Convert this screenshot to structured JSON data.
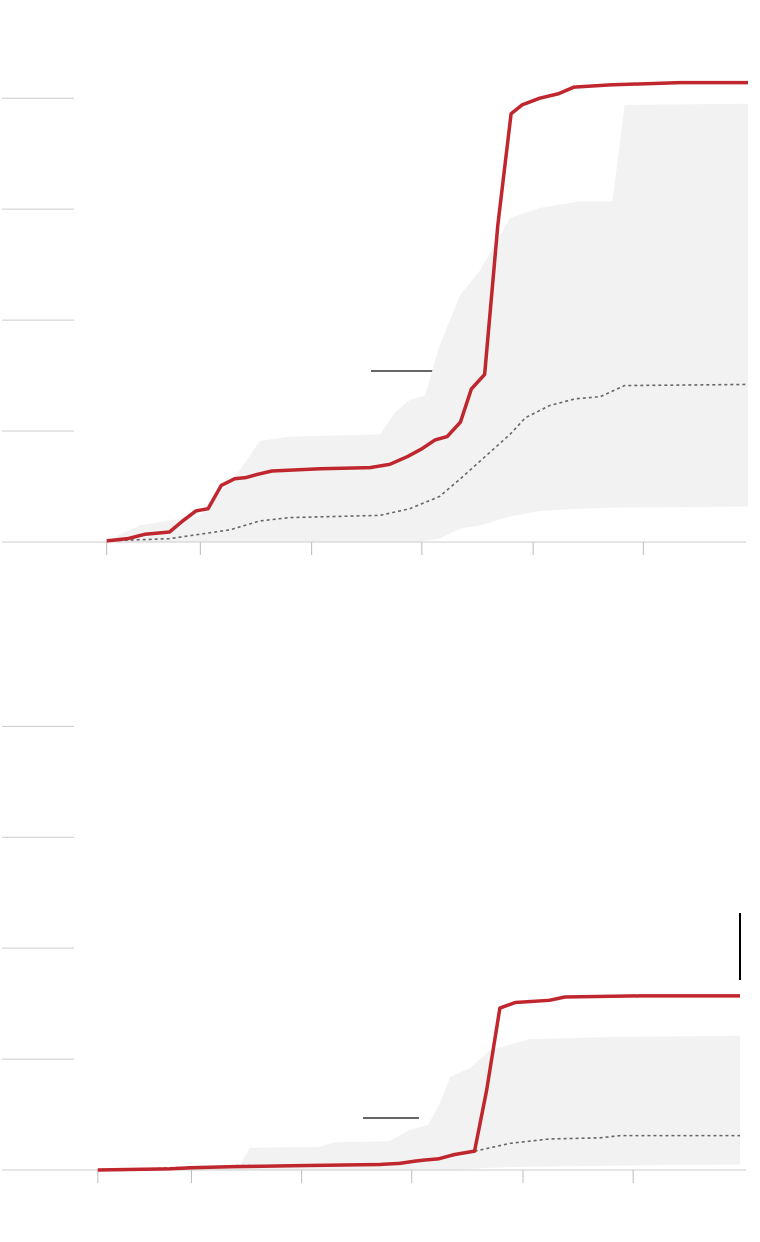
{
  "chart_data": [
    {
      "type": "line",
      "xlim": [
        0,
        6.77
      ],
      "ylim": [
        0,
        4.2
      ],
      "yticks": [
        1,
        2,
        3,
        4
      ],
      "xticks": [
        0.95,
        1.8,
        2.81,
        3.81,
        4.82,
        5.82
      ],
      "grid": true,
      "band": {
        "color": "#f2f2f2",
        "x": [
          0.95,
          1.25,
          1.8,
          2.16,
          2.34,
          2.61,
          3.43,
          3.57,
          3.7,
          3.84,
          3.97,
          4.16,
          4.34,
          4.61,
          4.88,
          5.24,
          5.54,
          5.65,
          6.77
        ],
        "lower": [
          0,
          0,
          0,
          0,
          0,
          0,
          0,
          0,
          0,
          0.01,
          0.03,
          0.12,
          0.15,
          0.23,
          0.28,
          0.3,
          0.31,
          0.31,
          0.32
        ],
        "upper": [
          0.01,
          0.15,
          0.24,
          0.65,
          0.91,
          0.95,
          0.97,
          1.17,
          1.28,
          1.32,
          1.77,
          2.23,
          2.45,
          2.92,
          3.01,
          3.07,
          3.07,
          3.94,
          3.95
        ]
      },
      "series": [
        {
          "color": "#666666",
          "dashed": true,
          "x": [
            0.95,
            1.52,
            2.07,
            2.34,
            2.61,
            3.43,
            3.7,
            3.97,
            4.16,
            4.43,
            4.61,
            4.75,
            4.97,
            5.2,
            5.43,
            5.65,
            6.77
          ],
          "values": [
            0.01,
            0.03,
            0.11,
            0.19,
            0.22,
            0.24,
            0.3,
            0.41,
            0.57,
            0.81,
            0.97,
            1.12,
            1.23,
            1.29,
            1.31,
            1.41,
            1.42
          ]
        },
        {
          "color": "#c0262d",
          "dashed": false,
          "x": [
            0.95,
            1.14,
            1.3,
            1.52,
            1.64,
            1.76,
            1.87,
            1.99,
            2.11,
            2.21,
            2.32,
            2.45,
            2.89,
            3.34,
            3.52,
            3.68,
            3.81,
            3.93,
            4.04,
            4.16,
            4.26,
            4.38,
            4.5,
            4.62,
            4.72,
            4.88,
            5.05,
            5.19,
            5.52,
            6.15,
            6.77
          ],
          "values": [
            0.01,
            0.03,
            0.07,
            0.09,
            0.19,
            0.28,
            0.3,
            0.51,
            0.57,
            0.58,
            0.61,
            0.64,
            0.66,
            0.67,
            0.7,
            0.77,
            0.84,
            0.92,
            0.95,
            1.08,
            1.38,
            1.51,
            2.86,
            3.86,
            3.94,
            4.0,
            4.04,
            4.1,
            4.12,
            4.14,
            4.14
          ]
        }
      ]
    },
    {
      "type": "line",
      "xlim": [
        0,
        6.7
      ],
      "ylim": [
        0,
        4.4
      ],
      "yticks": [
        1,
        2,
        3,
        4
      ],
      "xticks": [
        0.87,
        1.72,
        2.72,
        3.72,
        4.73,
        5.73
      ],
      "grid": true,
      "band": {
        "color": "#f2f2f2",
        "x": [
          0.87,
          2.16,
          2.25,
          2.89,
          3.02,
          3.52,
          3.7,
          3.87,
          3.97,
          4.07,
          4.25,
          4.43,
          4.79,
          5.61,
          6.7
        ],
        "lower": [
          0,
          0,
          0,
          0,
          0,
          0,
          0,
          0,
          0,
          0,
          0.01,
          0.02,
          0.03,
          0.04,
          0.05
        ],
        "upper": [
          0,
          0.05,
          0.2,
          0.21,
          0.25,
          0.26,
          0.36,
          0.41,
          0.59,
          0.84,
          0.92,
          1.08,
          1.18,
          1.2,
          1.21
        ]
      },
      "series": [
        {
          "color": "#666666",
          "dashed": true,
          "x": [
            0.87,
            2.16,
            3.43,
            3.97,
            4.34,
            4.61,
            4.97,
            5.43,
            5.61,
            6.7
          ],
          "values": [
            0,
            0.04,
            0.05,
            0.1,
            0.18,
            0.24,
            0.28,
            0.29,
            0.31,
            0.31
          ]
        },
        {
          "color": "#c0262d",
          "dashed": false,
          "x": [
            0.87,
            1.52,
            1.71,
            2.11,
            2.7,
            3.43,
            3.61,
            3.75,
            3.84,
            3.96,
            4.11,
            4.29,
            4.4,
            4.52,
            4.66,
            4.97,
            5.11,
            5.79,
            6.7
          ],
          "values": [
            0,
            0.01,
            0.02,
            0.03,
            0.04,
            0.05,
            0.06,
            0.08,
            0.09,
            0.1,
            0.14,
            0.17,
            0.72,
            1.46,
            1.51,
            1.53,
            1.56,
            1.57,
            1.57
          ]
        }
      ]
    }
  ]
}
